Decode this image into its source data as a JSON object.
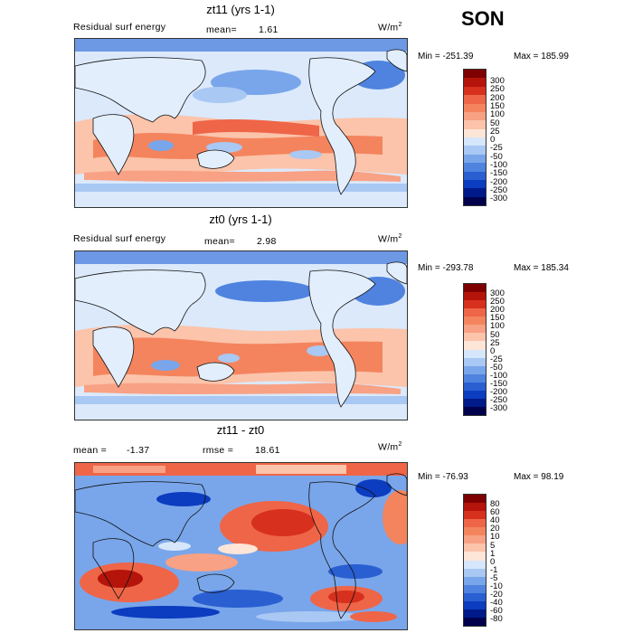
{
  "season": "SON",
  "panels": [
    {
      "title": "zt11 (yrs 1-1)",
      "left_label": "Residual surf energy",
      "mid_label": "mean=",
      "mid_value": "1.61",
      "units": "W/m",
      "units_sup": "2",
      "min_label": "Min = -251.39",
      "max_label": "Max = 185.99",
      "levels": [
        "300",
        "250",
        "200",
        "150",
        "100",
        "50",
        "25",
        "0",
        "-25",
        "-50",
        "-100",
        "-150",
        "-200",
        "-250",
        "-300"
      ]
    },
    {
      "title": "zt0 (yrs 1-1)",
      "left_label": "Residual surf energy",
      "mid_label": "mean=",
      "mid_value": "2.98",
      "units": "W/m",
      "units_sup": "2",
      "min_label": "Min = -293.78",
      "max_label": "Max = 185.34",
      "levels": [
        "300",
        "250",
        "200",
        "150",
        "100",
        "50",
        "25",
        "0",
        "-25",
        "-50",
        "-100",
        "-150",
        "-200",
        "-250",
        "-300"
      ]
    },
    {
      "title": "zt11 - zt0",
      "left_label": "mean =",
      "left_value": "-1.37",
      "mid_label": "rmse =",
      "mid_value": "18.61",
      "units": "W/m",
      "units_sup": "2",
      "min_label": "Min = -76.93",
      "max_label": "Max =  98.19",
      "levels": [
        "80",
        "60",
        "40",
        "20",
        "10",
        "5",
        "1",
        "0",
        "-1",
        "-5",
        "-10",
        "-20",
        "-40",
        "-60",
        "-80"
      ]
    }
  ],
  "colors": {
    "scale": [
      "#7f0000",
      "#b4140a",
      "#d7301f",
      "#ef6548",
      "#f4845e",
      "#f8a184",
      "#fbc4ab",
      "#fde5d7",
      "#ffffff",
      "#d6e6fb",
      "#a9c8f3",
      "#79a6ea",
      "#4f83df",
      "#2a5fd2",
      "#0c3cbf",
      "#001a8a",
      "#00004d"
    ]
  }
}
